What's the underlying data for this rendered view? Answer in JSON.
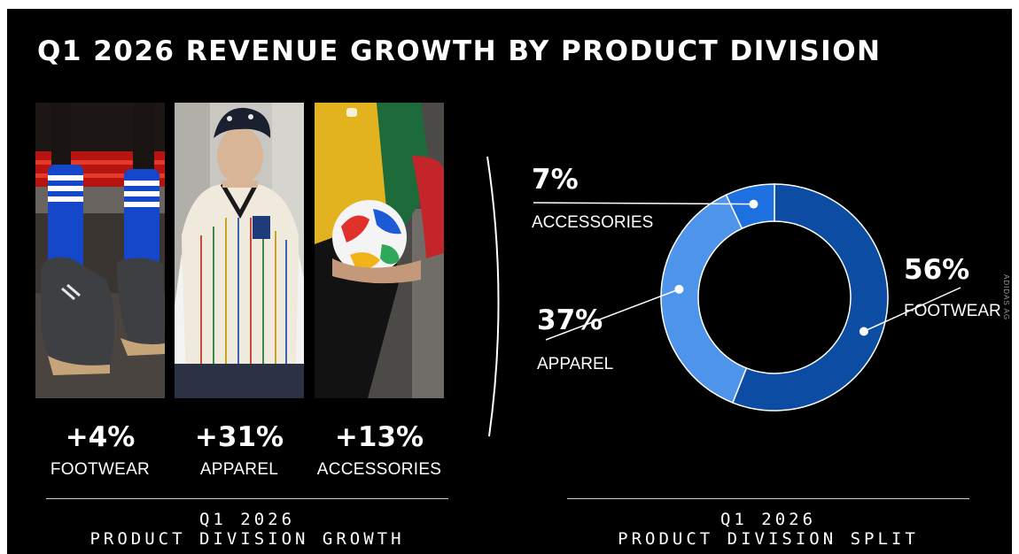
{
  "title": "Q1 2026 REVENUE GROWTH BY PRODUCT DIVISION",
  "growth": {
    "items": [
      {
        "value": "+4%",
        "label": "FOOTWEAR"
      },
      {
        "value": "+31%",
        "label": "APPAREL"
      },
      {
        "value": "+13%",
        "label": "ACCESSORIES"
      }
    ],
    "caption_line1": "Q1 2026",
    "caption_line2": "PRODUCT DIVISION GROWTH"
  },
  "split": {
    "caption_line1": "Q1 2026",
    "caption_line2": "PRODUCT DIVISION SPLIT"
  },
  "chart_data": {
    "type": "pie",
    "donut": true,
    "slices": [
      {
        "label": "FOOTWEAR",
        "value": 56,
        "value_label": "56%",
        "color": "#0c4ca3"
      },
      {
        "label": "APPAREL",
        "value": 37,
        "value_label": "37%",
        "color": "#4d94ea"
      },
      {
        "label": "ACCESSORIES",
        "value": 7,
        "value_label": "7%",
        "color": "#1e6fe0"
      }
    ]
  },
  "credit": "ADIDAS AG",
  "colors": {
    "background": "#000000",
    "text": "#ffffff",
    "rule": "#cfcfcf"
  }
}
